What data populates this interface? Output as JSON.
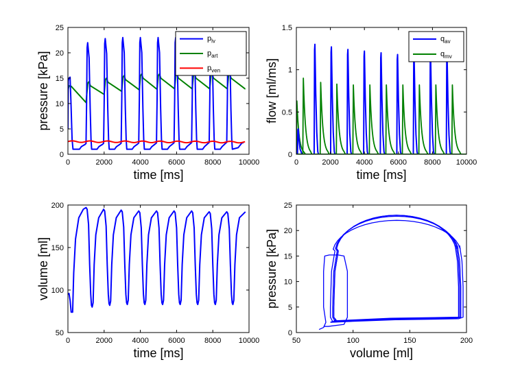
{
  "chart_data": [
    {
      "type": "line",
      "xlabel": "time [ms]",
      "ylabel": "pressure [kPa]",
      "xlim": [
        0,
        10000
      ],
      "ylim": [
        0,
        25
      ],
      "xticks": [
        0,
        2000,
        4000,
        6000,
        8000,
        10000
      ],
      "yticks": [
        0,
        5,
        10,
        15,
        20,
        25
      ],
      "legend": "top-right",
      "beat_times": [
        120,
        1060,
        2030,
        3000,
        3970,
        4950,
        5920,
        6890,
        7860,
        8830
      ],
      "series": [
        {
          "name": "p_lv",
          "name_base": "p",
          "name_sub": "lv",
          "color": "#0000ff",
          "peaks": [
            15.2,
            22.0,
            22.8,
            23.0,
            23.0,
            23.0,
            23.0,
            23.0,
            23.0,
            23.0
          ],
          "min": 1.0,
          "end": 2.3
        },
        {
          "name": "p_art",
          "name_base": "p",
          "name_sub": "art",
          "color": "#008000",
          "peaks": [
            13.5,
            14.3,
            15.0,
            15.5,
            15.8,
            15.8,
            15.8,
            15.8,
            15.8,
            15.8
          ],
          "troughs": [
            12.6,
            10.2,
            11.8,
            12.4,
            12.7,
            12.8,
            12.9,
            12.9,
            12.9,
            12.9,
            12.9
          ],
          "end": 12.9
        },
        {
          "name": "p_ven",
          "name_base": "p",
          "name_sub": "ven",
          "color": "#ff0000",
          "start": 2.5,
          "end": 2.4
        }
      ]
    },
    {
      "type": "line",
      "xlabel": "time [ms]",
      "ylabel": "flow [ml/ms]",
      "xlim": [
        0,
        10000
      ],
      "ylim": [
        0,
        1.5
      ],
      "xticks": [
        0,
        2000,
        4000,
        6000,
        8000,
        10000
      ],
      "yticks": [
        0,
        0.5,
        1,
        1.5
      ],
      "legend": "top-right",
      "series": [
        {
          "name": "q_av",
          "name_base": "q",
          "name_sub": "av",
          "color": "#0000ff",
          "pulse_times": [
            80,
            1060,
            2030,
            3000,
            3970,
            4950,
            5920,
            6890,
            7860,
            8830
          ],
          "peaks": [
            0.3,
            1.3,
            1.27,
            1.24,
            1.22,
            1.2,
            1.18,
            1.17,
            1.17,
            1.16
          ]
        },
        {
          "name": "q_mv",
          "name_base": "q",
          "name_sub": "mv",
          "color": "#008000",
          "pulse_times": [
            0,
            380,
            1400,
            2350,
            3320,
            4290,
            5260,
            6230,
            7200,
            8170,
            9140
          ],
          "peaks": [
            0.63,
            0.9,
            0.85,
            0.83,
            0.82,
            0.82,
            0.82,
            0.82,
            0.82,
            0.82,
            0.82
          ]
        }
      ]
    },
    {
      "type": "line",
      "xlabel": "time [ms]",
      "ylabel": "volume [ml]",
      "xlim": [
        0,
        10000
      ],
      "ylim": [
        50,
        200
      ],
      "xticks": [
        0,
        2000,
        4000,
        6000,
        8000,
        10000
      ],
      "yticks": [
        50,
        100,
        150,
        200
      ],
      "series": [
        {
          "name": "",
          "color": "#0000ff",
          "start": 95,
          "first_min": 74,
          "beat_times": [
            1060,
            2030,
            3000,
            3970,
            4950,
            5920,
            6890,
            7860,
            8830
          ],
          "maxes": [
            197,
            195,
            194,
            193,
            193,
            193,
            193,
            192,
            192
          ],
          "mins": [
            80,
            82,
            83,
            83,
            83,
            83,
            83,
            83,
            83
          ],
          "end": 192
        }
      ]
    },
    {
      "type": "line",
      "xlabel": "volume [ml]",
      "ylabel": "pressure [kPa]",
      "xlim": [
        50,
        200
      ],
      "ylim": [
        0,
        25
      ],
      "xticks": [
        50,
        100,
        150,
        200
      ],
      "yticks": [
        0,
        5,
        10,
        15,
        20,
        25
      ],
      "series": [
        {
          "name": "",
          "color": "#0000ff",
          "loops": [
            {
              "vmin": 74,
              "vmax": 95,
              "pmax": 15.2,
              "pmin": 1.0
            },
            {
              "vmin": 80,
              "vmax": 197,
              "pmax": 22.0,
              "pmin": 2.0
            },
            {
              "vmin": 82,
              "vmax": 195,
              "pmax": 22.8,
              "pmin": 2.1
            },
            {
              "vmin": 83,
              "vmax": 194,
              "pmax": 23.0,
              "pmin": 2.2
            },
            {
              "vmin": 83,
              "vmax": 193,
              "pmax": 23.0,
              "pmin": 2.3
            }
          ]
        }
      ]
    }
  ]
}
